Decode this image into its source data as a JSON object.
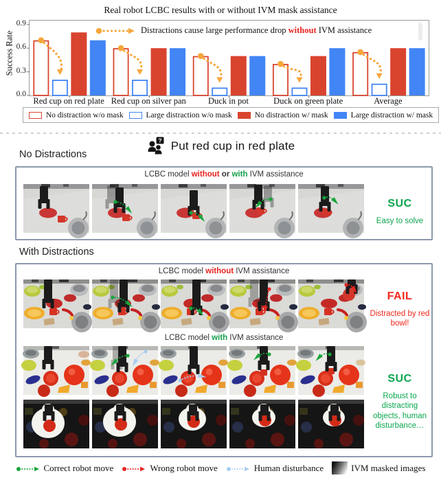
{
  "colors": {
    "red": "#d9442f",
    "blue": "#4285f4",
    "orange": "#f6a73c",
    "green_accent": "#0aa64e",
    "fail_red": "#f2281c",
    "arrow_green": "#18a53b",
    "arrow_red": "#e6251f",
    "arrow_blue": "#a9cdf2",
    "panel_border": "#8d99ae"
  },
  "chart_data": {
    "type": "bar",
    "title": "Real robot LCBC results with or without IVM mask assistance",
    "ylabel": "Success Rate",
    "xlabel": "",
    "ylim": [
      0,
      0.95
    ],
    "yticks": [
      0.0,
      0.3,
      0.6,
      0.9
    ],
    "ytick_labels": [
      "0.0",
      "0.3",
      "0.6",
      "0.9"
    ],
    "grid": false,
    "legend_position": "bottom",
    "categories": [
      "Red cup on red plate",
      "Red cup on silver pan",
      "Duck in pot",
      "Duck on green plate",
      "Average"
    ],
    "series": [
      {
        "name": "No distraction w/o mask",
        "style": "outline",
        "color": "#d9442f",
        "values": [
          0.7,
          0.6,
          0.5,
          0.4,
          0.55
        ]
      },
      {
        "name": "Large distraction w/o mask",
        "style": "outline",
        "color": "#4285f4",
        "values": [
          0.2,
          0.2,
          0.1,
          0.1,
          0.15
        ]
      },
      {
        "name": "No distraction w/ mask",
        "style": "solid",
        "color": "#d9442f",
        "values": [
          0.8,
          0.6,
          0.5,
          0.5,
          0.6
        ]
      },
      {
        "name": "Large distraction w/ mask",
        "style": "solid",
        "color": "#4285f4",
        "values": [
          0.7,
          0.6,
          0.5,
          0.6,
          0.6
        ]
      }
    ],
    "annotation": {
      "text_pre": "Distractions cause large performance drop ",
      "text_highlight": "without",
      "text_post": " IVM assistance",
      "arrow_color": "#f6a73c"
    }
  },
  "task": {
    "instruction": "Put red cup in red plate"
  },
  "sections": {
    "no_distractions": {
      "label": "No Distractions"
    },
    "with_distractions": {
      "label": "With Distractions"
    }
  },
  "panels": {
    "no_distractions": {
      "title_parts": [
        {
          "text": "LCBC model "
        },
        {
          "text": "without",
          "color": "red",
          "bold": true
        },
        {
          "text": " or ",
          "bold": true
        },
        {
          "text": "with",
          "color": "grn",
          "bold": true
        },
        {
          "text": " IVM assistance"
        }
      ],
      "row": {
        "scene": "clean",
        "arrows": [
          [],
          [
            "green"
          ],
          [
            "green"
          ],
          [
            "green"
          ],
          [
            "green"
          ]
        ]
      },
      "verdict": {
        "word": "SUC",
        "note": "Easy to solve"
      }
    },
    "with_distractions": {
      "title1_parts": [
        {
          "text": "LCBC model "
        },
        {
          "text": "without",
          "color": "red",
          "bold": true
        },
        {
          "text": " IVM assistance"
        }
      ],
      "row1": {
        "scene": "clutter",
        "arrows": [
          [],
          [
            "green"
          ],
          [
            "green"
          ],
          [
            "red"
          ],
          [
            "red"
          ]
        ]
      },
      "verdict_fail": {
        "word": "FAIL",
        "note": "Distracted by red bowl!"
      },
      "title2_parts": [
        {
          "text": "LCBC model "
        },
        {
          "text": "with",
          "color": "grn",
          "bold": true
        },
        {
          "text": " IVM assistance"
        }
      ],
      "row2": {
        "scene": "bright",
        "arrows": [
          [],
          [
            "green",
            "blue"
          ],
          [
            "blue"
          ],
          [
            "green"
          ],
          [
            "green"
          ]
        ]
      },
      "row3": {
        "scene": "masked",
        "arrows": [
          [],
          [],
          [],
          [],
          []
        ]
      },
      "verdict_suc": {
        "word": "SUC",
        "note": "Robust to distracting objects, human disturbance…"
      }
    }
  },
  "bottom_legend": {
    "items": [
      {
        "icon": "green-dotted-arrow-icon",
        "color": "#18a53b",
        "label": "Correct robot move"
      },
      {
        "icon": "red-dotted-arrow-icon",
        "color": "#e6251f",
        "label": "Wrong robot move"
      },
      {
        "icon": "blue-dotted-arrow-icon",
        "color": "#a9cdf2",
        "label": "Human disturbance"
      },
      {
        "icon": "ivm-mask-swatch",
        "label": "IVM masked images"
      }
    ]
  }
}
